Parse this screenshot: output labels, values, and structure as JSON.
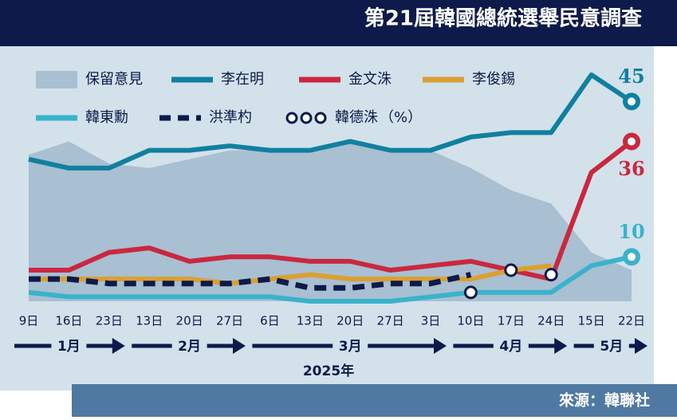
{
  "chart_data": {
    "type": "line",
    "title": "第21屆韓國總統選舉民意調查",
    "source": "來源：韓聯社",
    "year": "2025年",
    "categories": [
      "9日",
      "16日",
      "23日",
      "13日",
      "20日",
      "27日",
      "6日",
      "13日",
      "20日",
      "27日",
      "3日",
      "10日",
      "17日",
      "24日",
      "15日",
      "22日"
    ],
    "months": [
      {
        "label": "1月",
        "start": 0,
        "end": 2
      },
      {
        "label": "2月",
        "start": 3,
        "end": 5
      },
      {
        "label": "3月",
        "start": 6,
        "end": 10
      },
      {
        "label": "4月",
        "start": 11,
        "end": 13
      },
      {
        "label": "5月",
        "start": 14,
        "end": 15
      }
    ],
    "legend_unit": "（%）",
    "series": [
      {
        "name": "保留意見",
        "color": "#a9bfd2",
        "style": "area",
        "values": [
          33,
          36,
          31,
          30,
          32,
          34,
          34,
          34,
          36,
          34,
          34,
          30,
          25,
          22,
          11,
          7
        ]
      },
      {
        "name": "李在明",
        "color": "#10809f",
        "style": "line",
        "end_label": true,
        "values": [
          32,
          30,
          30,
          34,
          34,
          35,
          34,
          34,
          36,
          34,
          34,
          37,
          38,
          38,
          51,
          45
        ]
      },
      {
        "name": "金文洙",
        "color": "#c9283f",
        "style": "line",
        "end_label": true,
        "values": [
          7,
          7,
          11,
          12,
          9,
          10,
          10,
          9,
          9,
          7,
          8,
          9,
          7,
          5,
          29,
          36
        ]
      },
      {
        "name": "李俊錫",
        "color": "#d9a032",
        "style": "line",
        "values": [
          5,
          5,
          5,
          5,
          5,
          4,
          5,
          6,
          5,
          5,
          5,
          5,
          7,
          8,
          null,
          null
        ]
      },
      {
        "name": "韓東勳",
        "color": "#39b3cb",
        "style": "line",
        "end_label": true,
        "values": [
          2,
          1,
          1,
          1,
          1,
          1,
          1,
          0,
          0,
          0,
          1,
          2,
          2,
          2,
          8,
          10
        ]
      },
      {
        "name": "洪準杓",
        "color": "#0d1a4a",
        "style": "dashed",
        "values": [
          5,
          5,
          4,
          4,
          4,
          4,
          5,
          3,
          3,
          4,
          4,
          6,
          null,
          null,
          null,
          null
        ]
      },
      {
        "name": "韓德洙",
        "color": "#0d1a4a",
        "style": "dots",
        "values": [
          null,
          null,
          null,
          null,
          null,
          null,
          null,
          null,
          null,
          null,
          null,
          2,
          7,
          6,
          null,
          null
        ]
      }
    ]
  }
}
